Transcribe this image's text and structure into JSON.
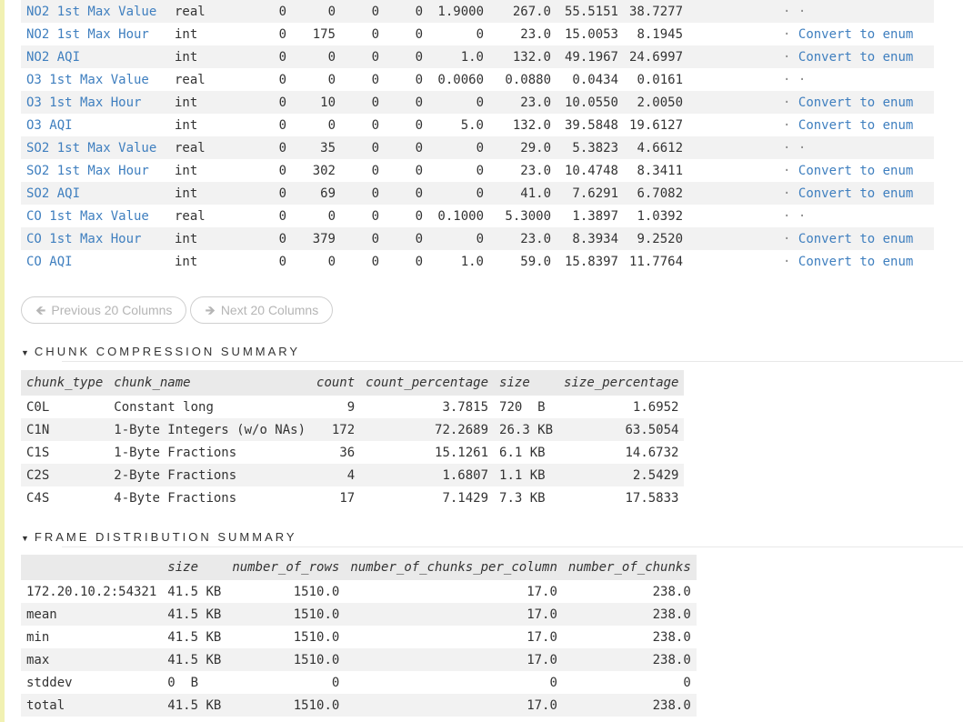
{
  "columns": [
    {
      "name": "NO2 1st Max Value",
      "type": "real",
      "c1": "0",
      "c2": "0",
      "c3": "0",
      "c4": "0",
      "c5": "1.9000",
      "c6": "267.0",
      "c7": "55.5151",
      "c8": "38.7277",
      "action": "· ·",
      "convert": ""
    },
    {
      "name": "NO2 1st Max Hour",
      "type": "int",
      "c1": "0",
      "c2": "175",
      "c3": "0",
      "c4": "0",
      "c5": "0",
      "c6": "23.0",
      "c7": "15.0053",
      "c8": "8.1945",
      "action": "·",
      "convert": "Convert to enum"
    },
    {
      "name": "NO2 AQI",
      "type": "int",
      "c1": "0",
      "c2": "0",
      "c3": "0",
      "c4": "0",
      "c5": "1.0",
      "c6": "132.0",
      "c7": "49.1967",
      "c8": "24.6997",
      "action": "·",
      "convert": "Convert to enum"
    },
    {
      "name": "O3 1st Max Value",
      "type": "real",
      "c1": "0",
      "c2": "0",
      "c3": "0",
      "c4": "0",
      "c5": "0.0060",
      "c6": "0.0880",
      "c7": "0.0434",
      "c8": "0.0161",
      "action": "· ·",
      "convert": ""
    },
    {
      "name": "O3 1st Max Hour",
      "type": "int",
      "c1": "0",
      "c2": "10",
      "c3": "0",
      "c4": "0",
      "c5": "0",
      "c6": "23.0",
      "c7": "10.0550",
      "c8": "2.0050",
      "action": "·",
      "convert": "Convert to enum"
    },
    {
      "name": "O3 AQI",
      "type": "int",
      "c1": "0",
      "c2": "0",
      "c3": "0",
      "c4": "0",
      "c5": "5.0",
      "c6": "132.0",
      "c7": "39.5848",
      "c8": "19.6127",
      "action": "·",
      "convert": "Convert to enum"
    },
    {
      "name": "SO2 1st Max Value",
      "type": "real",
      "c1": "0",
      "c2": "35",
      "c3": "0",
      "c4": "0",
      "c5": "0",
      "c6": "29.0",
      "c7": "5.3823",
      "c8": "4.6612",
      "action": "· ·",
      "convert": ""
    },
    {
      "name": "SO2 1st Max Hour",
      "type": "int",
      "c1": "0",
      "c2": "302",
      "c3": "0",
      "c4": "0",
      "c5": "0",
      "c6": "23.0",
      "c7": "10.4748",
      "c8": "8.3411",
      "action": "·",
      "convert": "Convert to enum"
    },
    {
      "name": "SO2 AQI",
      "type": "int",
      "c1": "0",
      "c2": "69",
      "c3": "0",
      "c4": "0",
      "c5": "0",
      "c6": "41.0",
      "c7": "7.6291",
      "c8": "6.7082",
      "action": "·",
      "convert": "Convert to enum"
    },
    {
      "name": "CO 1st Max Value",
      "type": "real",
      "c1": "0",
      "c2": "0",
      "c3": "0",
      "c4": "0",
      "c5": "0.1000",
      "c6": "5.3000",
      "c7": "1.3897",
      "c8": "1.0392",
      "action": "· ·",
      "convert": ""
    },
    {
      "name": "CO 1st Max Hour",
      "type": "int",
      "c1": "0",
      "c2": "379",
      "c3": "0",
      "c4": "0",
      "c5": "0",
      "c6": "23.0",
      "c7": "8.3934",
      "c8": "9.2520",
      "action": "·",
      "convert": "Convert to enum"
    },
    {
      "name": "CO AQI",
      "type": "int",
      "c1": "0",
      "c2": "0",
      "c3": "0",
      "c4": "0",
      "c5": "1.0",
      "c6": "59.0",
      "c7": "15.8397",
      "c8": "11.7764",
      "action": "·",
      "convert": "Convert to enum"
    }
  ],
  "pager": {
    "prev_icon": "arrow-left-icon",
    "prev_label": "Previous 20 Columns",
    "next_icon": "arrow-right-icon",
    "next_label": "Next 20 Columns"
  },
  "chunk_section": {
    "title": "CHUNK COMPRESSION SUMMARY",
    "headers": [
      "chunk_type",
      "chunk_name",
      "count",
      "count_percentage",
      "size",
      "size_percentage"
    ],
    "rows": [
      [
        "C0L",
        "Constant long",
        "9",
        "3.7815",
        "720  B",
        "1.6952"
      ],
      [
        "C1N",
        "1-Byte Integers (w/o NAs)",
        "172",
        "72.2689",
        "26.3 KB",
        "63.5054"
      ],
      [
        "C1S",
        "1-Byte Fractions",
        "36",
        "15.1261",
        "6.1 KB",
        "14.6732"
      ],
      [
        "C2S",
        "2-Byte Fractions",
        "4",
        "1.6807",
        "1.1 KB",
        "2.5429"
      ],
      [
        "C4S",
        "4-Byte Fractions",
        "17",
        "7.1429",
        "7.3 KB",
        "17.5833"
      ]
    ]
  },
  "frame_section": {
    "title": "FRAME DISTRIBUTION SUMMARY",
    "headers": [
      "",
      "size",
      "number_of_rows",
      "number_of_chunks_per_column",
      "number_of_chunks"
    ],
    "rows": [
      [
        "172.20.10.2:54321",
        "41.5 KB",
        "1510.0",
        "17.0",
        "238.0"
      ],
      [
        "mean",
        "41.5 KB",
        "1510.0",
        "17.0",
        "238.0"
      ],
      [
        "min",
        "41.5 KB",
        "1510.0",
        "17.0",
        "238.0"
      ],
      [
        "max",
        "41.5 KB",
        "1510.0",
        "17.0",
        "238.0"
      ],
      [
        "stddev",
        "0  B",
        "0",
        "0",
        "0"
      ],
      [
        "total",
        "41.5 KB",
        "1510.0",
        "17.0",
        "238.0"
      ]
    ]
  },
  "colors": {
    "link": "#3f7fbf",
    "left_bar": "#f1f1b2",
    "row_stripe": "#f2f2f2"
  }
}
